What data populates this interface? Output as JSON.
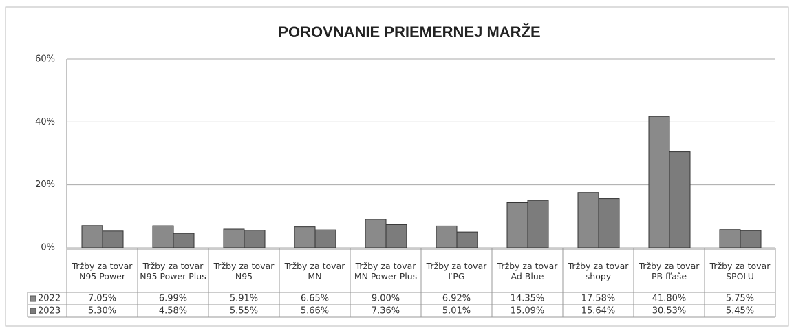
{
  "chart_data": {
    "type": "bar",
    "title": "POROVNANIE PRIEMERNEJ MARŽE",
    "categories": [
      "Tržby za tovar N95 Power",
      "Tržby za tovar N95 Power Plus",
      "Tržby za tovar N95",
      "Tržby za tovar MN",
      "Tržby za tovar MN Power Plus",
      "Tržby za tovar ĽPG",
      "Tržby za tovar Ad Blue",
      "Tržby za tovar shopy",
      "Tržby za tovar PB fľaše",
      "Tržby za tovar SPOLU"
    ],
    "series": [
      {
        "name": "2022",
        "color": "#8a8a8a",
        "values": [
          7.05,
          6.99,
          5.91,
          6.65,
          9.0,
          6.92,
          14.35,
          17.58,
          41.8,
          5.75
        ],
        "value_labels": [
          "7.05%",
          "6.99%",
          "5.91%",
          "6.65%",
          "9.00%",
          "6.92%",
          "14.35%",
          "17.58%",
          "41.80%",
          "5.75%"
        ]
      },
      {
        "name": "2023",
        "color": "#7c7c7c",
        "values": [
          5.3,
          4.58,
          5.55,
          5.66,
          7.36,
          5.01,
          15.09,
          15.64,
          30.53,
          5.45
        ],
        "value_labels": [
          "5.30%",
          "4.58%",
          "5.55%",
          "5.66%",
          "7.36%",
          "5.01%",
          "15.09%",
          "15.64%",
          "30.53%",
          "5.45%"
        ]
      }
    ],
    "ylim": [
      0,
      60
    ],
    "yticks": [
      {
        "value": 0,
        "label": "0%"
      },
      {
        "value": 20,
        "label": "20%"
      },
      {
        "value": 40,
        "label": "40%"
      },
      {
        "value": 60,
        "label": "60%"
      }
    ],
    "grid": true
  }
}
